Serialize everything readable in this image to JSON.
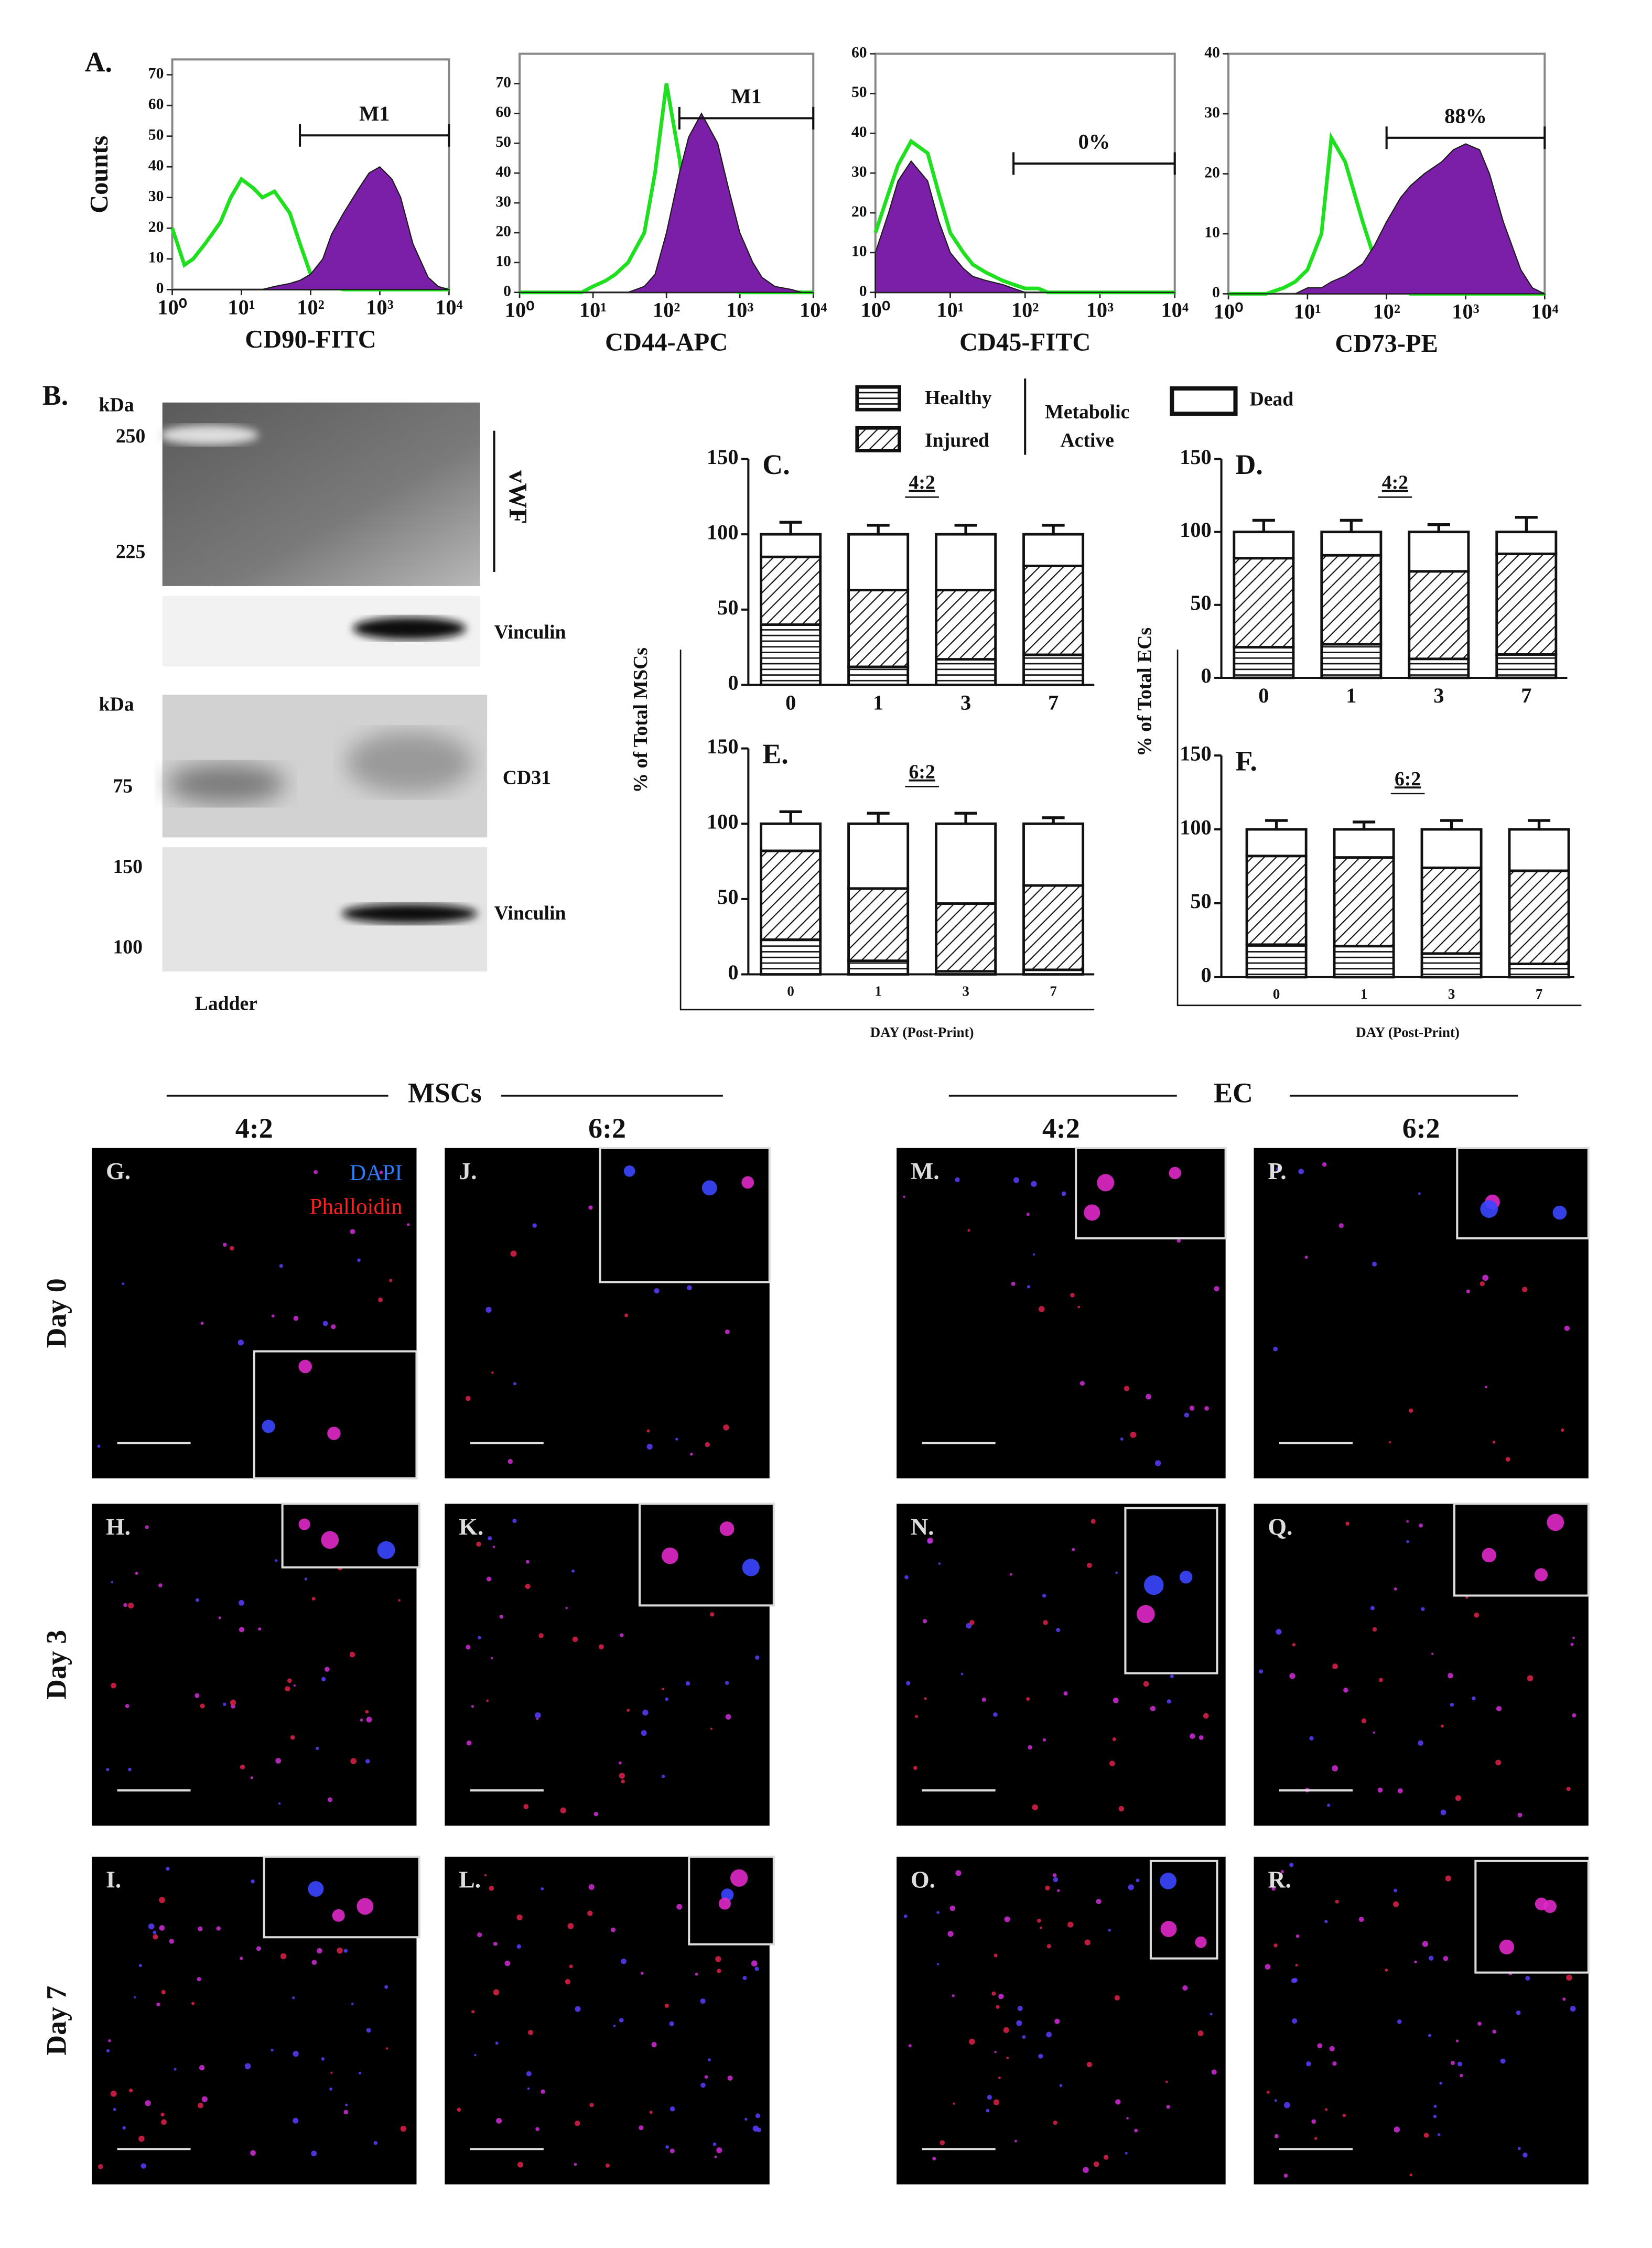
{
  "chart_data": [
    {
      "type": "area",
      "panel_label": "A.",
      "ylabel": "Counts",
      "xlabel": "CD90-FITC",
      "log_x": true,
      "x": [
        1,
        1.5,
        2,
        3,
        5,
        7,
        10,
        15,
        20,
        30,
        50,
        70,
        100,
        150,
        200,
        300,
        500,
        700,
        1000,
        1500,
        2000,
        3000,
        5000,
        7000,
        10000
      ],
      "xlim": [
        1,
        10000
      ],
      "ylim": [
        0,
        75
      ],
      "xticks": [
        {
          "value": 1,
          "label": "10⁰"
        },
        {
          "value": 10,
          "label": "10¹"
        },
        {
          "value": 100,
          "label": "10²"
        },
        {
          "value": 1000,
          "label": "10³"
        },
        {
          "value": 10000,
          "label": "10⁴"
        }
      ],
      "yticks": [
        0,
        10,
        20,
        30,
        40,
        50,
        60,
        70
      ],
      "gate": {
        "label": "M1",
        "range": [
          70,
          10000
        ]
      },
      "series": [
        {
          "color": "#1fe01f",
          "filled": false,
          "values": [
            20,
            8,
            10,
            15,
            22,
            30,
            36,
            33,
            30,
            32,
            25,
            15,
            5,
            2,
            1,
            0,
            0,
            0,
            0,
            0,
            0,
            0,
            0,
            0,
            0
          ]
        },
        {
          "color": "#7b1fa8",
          "filled": true,
          "values": [
            0,
            0,
            0,
            0,
            0,
            0,
            0,
            0,
            0,
            1,
            2,
            3,
            5,
            10,
            18,
            25,
            33,
            38,
            40,
            36,
            30,
            15,
            4,
            1,
            0
          ]
        }
      ]
    },
    {
      "type": "area",
      "xlabel": "CD44-APC",
      "log_x": true,
      "x": [
        1,
        1.5,
        2,
        3,
        5,
        7,
        10,
        15,
        20,
        30,
        50,
        70,
        100,
        150,
        200,
        300,
        500,
        700,
        1000,
        1500,
        2000,
        3000,
        5000,
        7000,
        10000
      ],
      "xlim": [
        1,
        10000
      ],
      "ylim": [
        0,
        80
      ],
      "xticks": [
        {
          "value": 1,
          "label": "10⁰"
        },
        {
          "value": 10,
          "label": "10¹"
        },
        {
          "value": 100,
          "label": "10²"
        },
        {
          "value": 1000,
          "label": "10³"
        },
        {
          "value": 10000,
          "label": "10⁴"
        }
      ],
      "yticks": [
        0,
        10,
        20,
        30,
        40,
        50,
        60,
        70
      ],
      "gate": {
        "label": "M1",
        "range": [
          150,
          10000
        ]
      },
      "series": [
        {
          "color": "#1fe01f",
          "filled": false,
          "values": [
            0,
            0,
            0,
            0,
            0,
            0,
            2,
            4,
            6,
            10,
            20,
            40,
            70,
            45,
            20,
            6,
            2,
            1,
            0,
            0,
            0,
            0,
            0,
            0,
            0
          ]
        },
        {
          "color": "#7b1fa8",
          "filled": true,
          "values": [
            0,
            0,
            0,
            0,
            0,
            0,
            0,
            0,
            0,
            0,
            2,
            6,
            20,
            40,
            52,
            60,
            50,
            35,
            20,
            10,
            5,
            2,
            1,
            0,
            0
          ]
        }
      ]
    },
    {
      "type": "area",
      "xlabel": "CD45-FITC",
      "log_x": true,
      "x": [
        1,
        1.5,
        2,
        3,
        5,
        7,
        10,
        15,
        20,
        30,
        50,
        70,
        100,
        150,
        200,
        300,
        500,
        700,
        1000,
        1500,
        2000,
        3000,
        5000,
        7000,
        10000
      ],
      "xlim": [
        1,
        10000
      ],
      "ylim": [
        0,
        60
      ],
      "xticks": [
        {
          "value": 1,
          "label": "10⁰"
        },
        {
          "value": 10,
          "label": "10¹"
        },
        {
          "value": 100,
          "label": "10²"
        },
        {
          "value": 1000,
          "label": "10³"
        },
        {
          "value": 10000,
          "label": "10⁴"
        }
      ],
      "yticks": [
        0,
        10,
        20,
        30,
        40,
        50,
        60
      ],
      "gate": {
        "label": "0%",
        "range": [
          70,
          10000
        ]
      },
      "series": [
        {
          "color": "#1fe01f",
          "filled": false,
          "values": [
            15,
            25,
            32,
            38,
            35,
            25,
            15,
            10,
            7,
            5,
            3,
            2,
            1,
            1,
            0,
            0,
            0,
            0,
            0,
            0,
            0,
            0,
            0,
            0,
            0
          ]
        },
        {
          "color": "#7b1fa8",
          "filled": true,
          "values": [
            10,
            20,
            28,
            33,
            28,
            18,
            10,
            6,
            4,
            3,
            2,
            1,
            0,
            0,
            0,
            0,
            0,
            0,
            0,
            0,
            0,
            0,
            0,
            0,
            0
          ]
        }
      ]
    },
    {
      "type": "area",
      "xlabel": "CD73-PE",
      "log_x": true,
      "x": [
        1,
        1.5,
        2,
        3,
        5,
        7,
        10,
        15,
        20,
        30,
        50,
        70,
        100,
        150,
        200,
        300,
        500,
        700,
        1000,
        1500,
        2000,
        3000,
        5000,
        7000,
        10000
      ],
      "xlim": [
        1,
        10000
      ],
      "ylim": [
        0,
        40
      ],
      "xticks": [
        {
          "value": 1,
          "label": "10⁰"
        },
        {
          "value": 10,
          "label": "10¹"
        },
        {
          "value": 100,
          "label": "10²"
        },
        {
          "value": 1000,
          "label": "10³"
        },
        {
          "value": 10000,
          "label": "10⁴"
        }
      ],
      "yticks": [
        0,
        10,
        20,
        30,
        40
      ],
      "gate": {
        "label": "88%",
        "range": [
          100,
          10000
        ]
      },
      "series": [
        {
          "color": "#1fe01f",
          "filled": false,
          "values": [
            0,
            0,
            0,
            0,
            1,
            2,
            4,
            10,
            26,
            22,
            12,
            6,
            2,
            1,
            0,
            0,
            0,
            0,
            0,
            0,
            0,
            0,
            0,
            0,
            0
          ]
        },
        {
          "color": "#7b1fa8",
          "filled": true,
          "values": [
            0,
            0,
            0,
            0,
            0,
            0,
            1,
            1,
            2,
            3,
            5,
            8,
            12,
            16,
            18,
            20,
            22,
            24,
            25,
            24,
            20,
            12,
            4,
            1,
            0
          ]
        }
      ]
    },
    {
      "type": "bar",
      "stacked": true,
      "panel_label": "C.",
      "subtitle": "4:2",
      "ylabel": "% of Total MSCs",
      "categories": [
        "0",
        "1",
        "3",
        "7"
      ],
      "ylim": [
        0,
        150
      ],
      "yticks": [
        0,
        50,
        100,
        150
      ],
      "series": [
        {
          "name": "Healthy",
          "pattern": "horizontal",
          "values": [
            40,
            12,
            17,
            20
          ],
          "errors": [
            12,
            2,
            4,
            6
          ]
        },
        {
          "name": "Injured",
          "pattern": "diagonal",
          "values": [
            45,
            51,
            46,
            59
          ],
          "errors": [
            10,
            6,
            8,
            4
          ]
        },
        {
          "name": "Dead",
          "pattern": "none",
          "values": [
            15,
            37,
            37,
            21
          ],
          "errors": [
            8,
            6,
            6,
            6
          ]
        }
      ]
    },
    {
      "type": "bar",
      "stacked": true,
      "panel_label": "D.",
      "subtitle": "4:2",
      "ylabel": "% of Total ECs",
      "categories": [
        "0",
        "1",
        "3",
        "7"
      ],
      "ylim": [
        0,
        150
      ],
      "yticks": [
        0,
        50,
        100,
        150
      ],
      "series": [
        {
          "name": "Healthy",
          "pattern": "horizontal",
          "values": [
            21,
            23,
            13,
            16
          ],
          "errors": [
            6,
            6,
            5,
            5
          ]
        },
        {
          "name": "Injured",
          "pattern": "diagonal",
          "values": [
            61,
            61,
            60,
            69
          ],
          "errors": [
            8,
            4,
            7,
            6
          ]
        },
        {
          "name": "Dead",
          "pattern": "none",
          "values": [
            18,
            16,
            27,
            15
          ],
          "errors": [
            8,
            8,
            5,
            10
          ]
        }
      ]
    },
    {
      "type": "bar",
      "stacked": true,
      "panel_label": "E.",
      "subtitle": "6:2",
      "xlabel": "DAY (Post-Print)",
      "categories": [
        "0",
        "1",
        "3",
        "7"
      ],
      "ylim": [
        0,
        150
      ],
      "yticks": [
        0,
        50,
        100,
        150
      ],
      "series": [
        {
          "name": "Healthy",
          "pattern": "horizontal",
          "values": [
            23,
            9,
            2,
            3
          ],
          "errors": [
            8,
            3,
            1,
            1
          ]
        },
        {
          "name": "Injured",
          "pattern": "diagonal",
          "values": [
            59,
            48,
            45,
            56
          ],
          "errors": [
            8,
            8,
            8,
            4
          ]
        },
        {
          "name": "Dead",
          "pattern": "none",
          "values": [
            18,
            43,
            53,
            41
          ],
          "errors": [
            8,
            7,
            7,
            4
          ]
        }
      ]
    },
    {
      "type": "bar",
      "stacked": true,
      "panel_label": "F.",
      "subtitle": "6:2",
      "xlabel": "DAY (Post-Print)",
      "categories": [
        "0",
        "1",
        "3",
        "7"
      ],
      "ylim": [
        0,
        150
      ],
      "yticks": [
        0,
        50,
        100,
        150
      ],
      "series": [
        {
          "name": "Healthy",
          "pattern": "horizontal",
          "values": [
            22,
            21,
            16,
            9
          ],
          "errors": [
            6,
            6,
            5,
            4
          ]
        },
        {
          "name": "Injured",
          "pattern": "diagonal",
          "values": [
            60,
            60,
            58,
            63
          ],
          "errors": [
            6,
            6,
            8,
            8
          ]
        },
        {
          "name": "Dead",
          "pattern": "none",
          "values": [
            18,
            19,
            26,
            28
          ],
          "errors": [
            6,
            5,
            6,
            6
          ]
        }
      ]
    }
  ],
  "legend": {
    "group_label": [
      "Metabolic",
      "Active"
    ]
  },
  "western_blot": {
    "label": "B.",
    "kda": [
      "kDa",
      "kDa"
    ],
    "markers": [
      250,
      225,
      75,
      150,
      100
    ],
    "targets": [
      "vWF",
      "Vinculin",
      "CD31",
      "Vinculin"
    ],
    "ladder": "Ladder"
  },
  "microscopy": {
    "groups": [
      {
        "title": "MSCs",
        "columns": [
          "4:2",
          "6:2"
        ]
      },
      {
        "title": "EC",
        "columns": [
          "4:2",
          "6:2"
        ]
      }
    ],
    "rows": [
      "Day 0",
      "Day 3",
      "Day 7"
    ],
    "panels": [
      [
        "G.",
        "J.",
        "M.",
        "P."
      ],
      [
        "H.",
        "K.",
        "N.",
        "Q."
      ],
      [
        "I.",
        "L.",
        "O.",
        "R."
      ]
    ],
    "stains": [
      {
        "name": "DAPI",
        "color": "#2a7bff"
      },
      {
        "name": "Phalloidin",
        "color": "#ff2020"
      }
    ]
  }
}
